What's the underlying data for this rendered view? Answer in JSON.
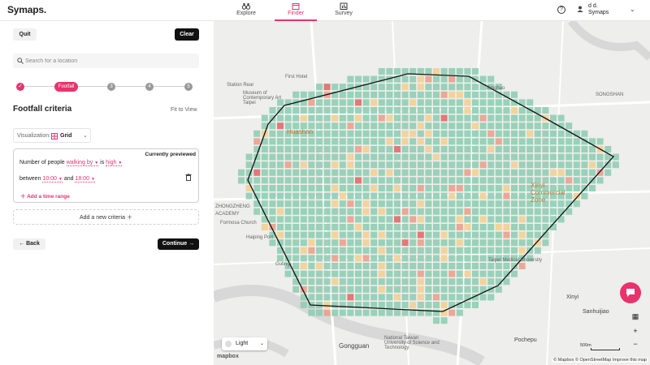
{
  "app": {
    "brand": "Symaps."
  },
  "nav": {
    "tabs": [
      {
        "label": "Explore",
        "icon": "binoculars-icon"
      },
      {
        "label": "Finder",
        "icon": "calendar-icon",
        "active": true
      },
      {
        "label": "Survey",
        "icon": "chart-icon"
      }
    ]
  },
  "user": {
    "name": "d d.",
    "org": "Symaps"
  },
  "sidebar": {
    "quit_label": "Quit",
    "clear_label": "Clear",
    "search": {
      "placeholder": "Search for a location",
      "value": ""
    },
    "stepper": {
      "active_label": "Footfall",
      "steps": [
        "2",
        "3",
        "4",
        "5"
      ]
    },
    "title": "Footfall criteria",
    "fit_label": "Fit to View",
    "visualization": {
      "label": "Visualization:",
      "value": "Grid"
    },
    "criteria": {
      "badge": "Currently previewed",
      "text_number": "Number of people",
      "mode": "walking by",
      "text_is": "is",
      "level": "high",
      "text_between": "between",
      "from": "10:00",
      "text_and": "and",
      "to": "18:00",
      "add_time": "Add a time range"
    },
    "add_criteria": "Add a new criteria",
    "back_label": "Back",
    "continue_label": "Continue"
  },
  "map": {
    "labels": {
      "station_rear": "Station Rear",
      "museum": "Museum of Contemporary Art Taipei",
      "huashan": "Huashan",
      "xinyi": "Xinyi Commercial Zone",
      "zhongzheng": "ZHONGZHENG",
      "academy": "ACADEMY",
      "gongguan": "Gongguan",
      "xinyi_dist": "Xinyi",
      "sanhuijiao": "Sanhuijiao",
      "pochepu": "Pochepu",
      "songshan": "SONGSHAN",
      "dingpu": "Dinghao",
      "guting": "Guting",
      "first_hotel": "First Hotel",
      "taipei_medical": "Taipei Medical University",
      "taiwan_normal": "National Taiwan University of Science and Technology",
      "haiping": "Haiping Port",
      "formosa": "Formosa Church"
    },
    "theme": "Light",
    "scale": "500m",
    "attribution": "© Mapbox © OpenStreetMap Improve this map",
    "logo": "mapbox",
    "grid_colors": {
      "low": "#8fcdb4",
      "mid": "#f2cf93",
      "high": "#e9a08d",
      "peak": "#e06a6a"
    },
    "accent": "#e8336d"
  }
}
